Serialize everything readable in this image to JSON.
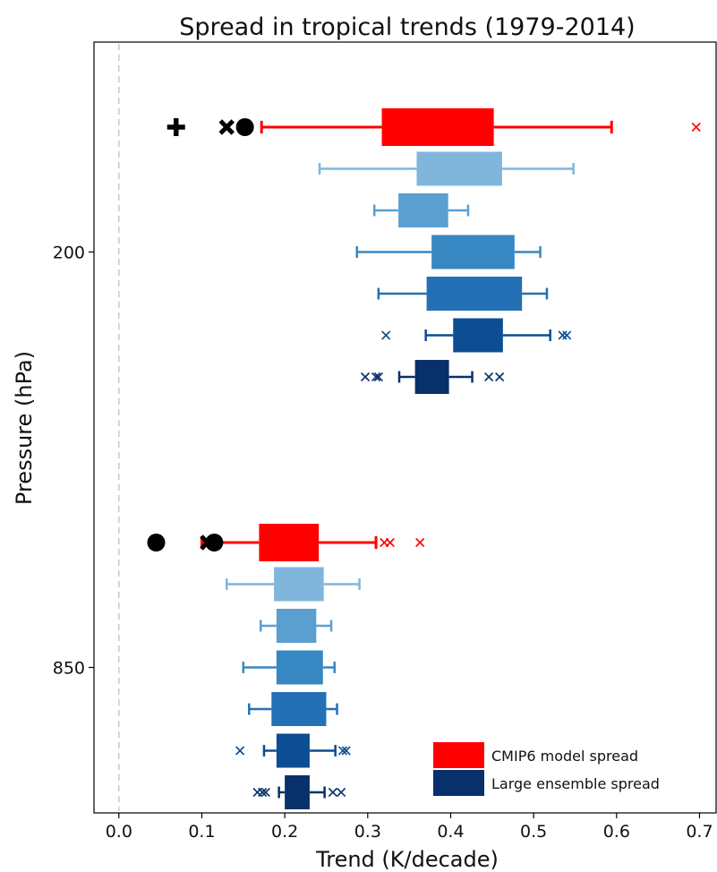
{
  "chart_data": {
    "type": "boxplot",
    "title": "Spread in tropical trends (1979-2014)",
    "xlabel": "Trend (K/decade)",
    "ylabel": "Pressure (hPa)",
    "xlim": [
      -0.03,
      0.72
    ],
    "xticks": [
      0.0,
      0.1,
      0.2,
      0.3,
      0.4,
      0.5,
      0.6,
      0.7
    ],
    "xtick_labels": [
      "0.0",
      "0.1",
      "0.2",
      "0.3",
      "0.4",
      "0.5",
      "0.6",
      "0.7"
    ],
    "y_ticks": [
      "200",
      "850"
    ],
    "grid": false,
    "zero_line": "dashed vertical at 0.0",
    "legend": {
      "placement": "bottom-right",
      "entries": [
        {
          "label": "CMIP6 model spread",
          "color": "#ff0000"
        },
        {
          "label": "Large ensemble spread",
          "color": "#08306b"
        }
      ]
    },
    "groups": [
      {
        "pressure": "200",
        "observations": [
          {
            "x": 0.069,
            "marker": "plus"
          },
          {
            "x": 0.13,
            "marker": "x"
          },
          {
            "x": 0.152,
            "marker": "circle"
          }
        ],
        "boxes": [
          {
            "series": "CMIP6 model spread",
            "color": "#ff0000",
            "whisker_low": 0.172,
            "q1": 0.317,
            "q3": 0.452,
            "whisker_high": 0.594,
            "outliers": [
              0.696
            ]
          },
          {
            "series": "Large ensemble spread",
            "color": "#80b6dc",
            "whisker_low": 0.242,
            "q1": 0.359,
            "q3": 0.462,
            "whisker_high": 0.548,
            "outliers": []
          },
          {
            "series": "Large ensemble spread",
            "color": "#5a9fd0",
            "whisker_low": 0.308,
            "q1": 0.337,
            "q3": 0.397,
            "whisker_high": 0.421,
            "outliers": []
          },
          {
            "series": "Large ensemble spread",
            "color": "#3787c2",
            "whisker_low": 0.287,
            "q1": 0.377,
            "q3": 0.477,
            "whisker_high": 0.508,
            "outliers": []
          },
          {
            "series": "Large ensemble spread",
            "color": "#2470b5",
            "whisker_low": 0.313,
            "q1": 0.371,
            "q3": 0.486,
            "whisker_high": 0.516,
            "outliers": []
          },
          {
            "series": "Large ensemble spread",
            "color": "#0c4d93",
            "whisker_low": 0.37,
            "q1": 0.403,
            "q3": 0.463,
            "whisker_high": 0.52,
            "outliers": [
              0.322,
              0.535,
              0.54
            ]
          },
          {
            "series": "Large ensemble spread",
            "color": "#08306b",
            "whisker_low": 0.338,
            "q1": 0.357,
            "q3": 0.398,
            "whisker_high": 0.426,
            "outliers": [
              0.297,
              0.31,
              0.313,
              0.446,
              0.459
            ]
          }
        ]
      },
      {
        "pressure": "850",
        "observations": [
          {
            "x": 0.045,
            "marker": "circle"
          },
          {
            "x": 0.115,
            "marker": "circle"
          },
          {
            "x": 0.107,
            "marker": "x"
          }
        ],
        "boxes": [
          {
            "series": "CMIP6 model spread",
            "color": "#ff0000",
            "whisker_low": 0.1,
            "q1": 0.169,
            "q3": 0.241,
            "whisker_high": 0.31,
            "outliers": [
              0.32,
              0.327,
              0.363
            ]
          },
          {
            "series": "Large ensemble spread",
            "color": "#80b6dc",
            "whisker_low": 0.13,
            "q1": 0.187,
            "q3": 0.247,
            "whisker_high": 0.29,
            "outliers": []
          },
          {
            "series": "Large ensemble spread",
            "color": "#5a9fd0",
            "whisker_low": 0.171,
            "q1": 0.19,
            "q3": 0.238,
            "whisker_high": 0.256,
            "outliers": []
          },
          {
            "series": "Large ensemble spread",
            "color": "#3787c2",
            "whisker_low": 0.15,
            "q1": 0.19,
            "q3": 0.246,
            "whisker_high": 0.26,
            "outliers": []
          },
          {
            "series": "Large ensemble spread",
            "color": "#2470b5",
            "whisker_low": 0.157,
            "q1": 0.184,
            "q3": 0.25,
            "whisker_high": 0.263,
            "outliers": []
          },
          {
            "series": "Large ensemble spread",
            "color": "#0c4d93",
            "whisker_low": 0.175,
            "q1": 0.19,
            "q3": 0.23,
            "whisker_high": 0.261,
            "outliers": [
              0.146,
              0.27,
              0.274
            ]
          },
          {
            "series": "Large ensemble spread",
            "color": "#08306b",
            "whisker_low": 0.193,
            "q1": 0.2,
            "q3": 0.23,
            "whisker_high": 0.248,
            "outliers": [
              0.167,
              0.173,
              0.177,
              0.258,
              0.268
            ]
          }
        ]
      }
    ]
  }
}
